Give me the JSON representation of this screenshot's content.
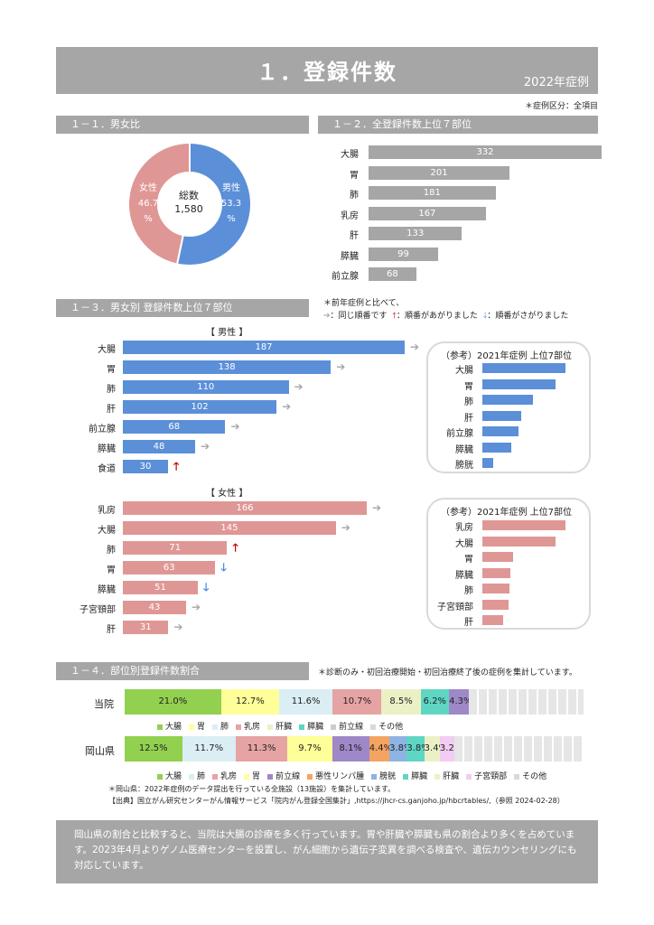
{
  "title": "１．登録件数",
  "year_label": "2022年症例",
  "note_top": "＊症例区分：全項目",
  "s1": {
    "heading": "１－１．男女比",
    "total_label": "総数",
    "total_value": "1,580",
    "female_label": "女性",
    "female_pct": "46.7",
    "male_label": "男性",
    "male_pct": "53.3",
    "pct_unit": "%",
    "male_color": "#5b8fd8",
    "female_color": "#df9796"
  },
  "s2": {
    "heading": "１－２．全登録件数上位７部位",
    "items": [
      {
        "label": "大腸",
        "value": 332
      },
      {
        "label": "胃",
        "value": 201
      },
      {
        "label": "肺",
        "value": 181
      },
      {
        "label": "乳房",
        "value": 167
      },
      {
        "label": "肝",
        "value": 133
      },
      {
        "label": "膵臓",
        "value": 99
      },
      {
        "label": "前立腺",
        "value": 68
      }
    ]
  },
  "s3": {
    "heading": "１－３．男女別 登録件数上位７部位",
    "note_line1": "＊前年症例と比べて、",
    "note_same": "：同じ順番です",
    "note_up": "：順番があがりました",
    "note_down": "：順番がさがりました",
    "male_header": "【 男性 】",
    "female_header": "【 女性 】",
    "male": [
      {
        "label": "大腸",
        "value": 187,
        "trend": "same"
      },
      {
        "label": "胃",
        "value": 138,
        "trend": "same"
      },
      {
        "label": "肺",
        "value": 110,
        "trend": "same"
      },
      {
        "label": "肝",
        "value": 102,
        "trend": "same"
      },
      {
        "label": "前立腺",
        "value": 68,
        "trend": "same"
      },
      {
        "label": "膵臓",
        "value": 48,
        "trend": "same"
      },
      {
        "label": "食道",
        "value": 30,
        "trend": "up"
      }
    ],
    "female": [
      {
        "label": "乳房",
        "value": 166,
        "trend": "same"
      },
      {
        "label": "大腸",
        "value": 145,
        "trend": "same"
      },
      {
        "label": "肺",
        "value": 71,
        "trend": "up"
      },
      {
        "label": "胃",
        "value": 63,
        "trend": "down"
      },
      {
        "label": "膵臓",
        "value": 51,
        "trend": "down"
      },
      {
        "label": "子宮頸部",
        "value": 43,
        "trend": "same"
      },
      {
        "label": "肝",
        "value": 31,
        "trend": "same"
      }
    ],
    "ref_title": "（参考）2021年症例 上位7部位",
    "ref_male": [
      {
        "label": "大腸",
        "value": 1.0
      },
      {
        "label": "胃",
        "value": 0.88
      },
      {
        "label": "肺",
        "value": 0.61
      },
      {
        "label": "肝",
        "value": 0.47
      },
      {
        "label": "前立腺",
        "value": 0.43
      },
      {
        "label": "膵臓",
        "value": 0.35
      },
      {
        "label": "膀胱",
        "value": 0.13
      }
    ],
    "ref_female": [
      {
        "label": "乳房",
        "value": 1.0
      },
      {
        "label": "大腸",
        "value": 0.88
      },
      {
        "label": "胃",
        "value": 0.37
      },
      {
        "label": "膵臓",
        "value": 0.34
      },
      {
        "label": "肺",
        "value": 0.33
      },
      {
        "label": "子宮頸部",
        "value": 0.31
      },
      {
        "label": "肝",
        "value": 0.25
      }
    ]
  },
  "s4": {
    "heading": "１－４．部位別登録件数割合",
    "note": "＊診断のみ・初回治療開始・初回治療終了後の症例を集計しています。",
    "row1_label": "当院",
    "row2_label": "岡山県",
    "row1": [
      {
        "label": "大腸",
        "pct": 21.0,
        "text": "21.0%",
        "color": "#92d050"
      },
      {
        "label": "胃",
        "pct": 12.7,
        "text": "12.7%",
        "color": "#ffff99"
      },
      {
        "label": "肺",
        "pct": 11.6,
        "text": "11.6%",
        "color": "#daeef3"
      },
      {
        "label": "乳房",
        "pct": 10.7,
        "text": "10.7%",
        "color": "#e6a3a3"
      },
      {
        "label": "肝臓",
        "pct": 8.5,
        "text": "8.5%",
        "color": "#ebf1c5"
      },
      {
        "label": "膵臓",
        "pct": 6.2,
        "text": "6.2%",
        "color": "#5ed6c3"
      },
      {
        "label": "前立腺",
        "pct": 4.3,
        "text": "4.3%",
        "color": "#9f88c8"
      },
      {
        "label": "その他",
        "pct": 25.0,
        "text": "",
        "color": "#d9d9d9"
      }
    ],
    "row2": [
      {
        "label": "大腸",
        "pct": 12.5,
        "text": "12.5%",
        "color": "#92d050"
      },
      {
        "label": "肺",
        "pct": 11.7,
        "text": "11.7%",
        "color": "#daeef3"
      },
      {
        "label": "乳房",
        "pct": 11.3,
        "text": "11.3%",
        "color": "#e6a3a3"
      },
      {
        "label": "胃",
        "pct": 9.7,
        "text": "9.7%",
        "color": "#ffff99"
      },
      {
        "label": "前立線",
        "pct": 8.1,
        "text": "8.1%",
        "color": "#9f88c8"
      },
      {
        "label": "悪性リンパ腫",
        "pct": 4.4,
        "text": "4.4%",
        "color": "#f4a460"
      },
      {
        "label": "膀胱",
        "pct": 3.8,
        "text": "3.8%",
        "color": "#8db4e2"
      },
      {
        "label": "膵臓",
        "pct": 3.8,
        "text": "3.8%",
        "color": "#5ed6c3"
      },
      {
        "label": "肝臓",
        "pct": 3.4,
        "text": "3.4%",
        "color": "#ebf1c5"
      },
      {
        "label": "子宮頸部",
        "pct": 3.2,
        "text": "3.2%",
        "color": "#f2ccf2"
      },
      {
        "label": "その他",
        "pct": 28.1,
        "text": "",
        "color": "#d9d9d9"
      }
    ],
    "legend1": [
      "大腸",
      "胃",
      "肺",
      "乳房",
      "肝臓",
      "膵臓",
      "前立線",
      "その他"
    ],
    "legend2": [
      "大腸",
      "肺",
      "乳房",
      "胃",
      "前立線",
      "悪性リンパ腫",
      "膀胱",
      "膵臓",
      "肝臓",
      "子宮頸部",
      "その他"
    ],
    "src_line1": "＊岡山県：2022年症例のデータ提出を行っている全施設（13施設）を集計しています。",
    "src_line2": "【出典】国立がん研究センターがん情報サービス「院内がん登録全国集計」,https://jhcr-cs.ganjoho.jp/hbcrtables/,（参照 2024-02-28）"
  },
  "summary": "岡山県の割合と比較すると、当院は大腸の診療を多く行っています。胃や肝臓や膵臓も県の割合より多くを占めています。2023年4月よりゲノム医療センターを設置し、がん細胞から遺伝子変異を調べる検査や、遺伝カウンセリングにも対応しています。"
}
